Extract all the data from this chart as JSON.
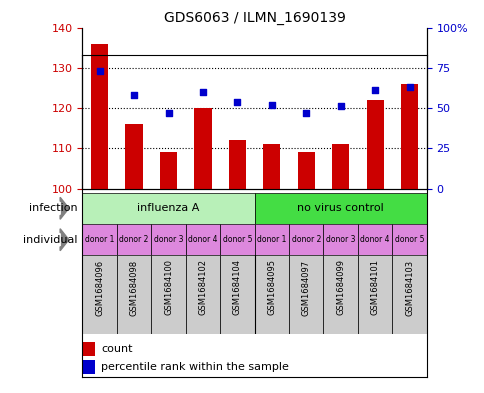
{
  "title": "GDS6063 / ILMN_1690139",
  "samples": [
    "GSM1684096",
    "GSM1684098",
    "GSM1684100",
    "GSM1684102",
    "GSM1684104",
    "GSM1684095",
    "GSM1684097",
    "GSM1684099",
    "GSM1684101",
    "GSM1684103"
  ],
  "counts": [
    136,
    116,
    109,
    120,
    112,
    111,
    109,
    111,
    122,
    126
  ],
  "percentiles": [
    73,
    58,
    47,
    60,
    54,
    52,
    47,
    51,
    61,
    63
  ],
  "ylim_left": [
    100,
    140
  ],
  "yticks_left": [
    100,
    110,
    120,
    130,
    140
  ],
  "yticks_right": [
    0,
    25,
    50,
    75,
    100
  ],
  "infection_groups": [
    {
      "label": "influenza A",
      "start": 0,
      "end": 5,
      "color": "#b8f0b8"
    },
    {
      "label": "no virus control",
      "start": 5,
      "end": 10,
      "color": "#44dd44"
    }
  ],
  "individual_labels": [
    "donor 1",
    "donor 2",
    "donor 3",
    "donor 4",
    "donor 5",
    "donor 1",
    "donor 2",
    "donor 3",
    "donor 4",
    "donor 5"
  ],
  "individual_color": "#dd88dd",
  "bar_color": "#cc0000",
  "scatter_color": "#0000cc",
  "sample_bg_color": "#cccccc",
  "infection_label": "infection",
  "individual_label": "individual",
  "legend_count": "count",
  "legend_percentile": "percentile rank within the sample",
  "fig_bg": "#ffffff"
}
